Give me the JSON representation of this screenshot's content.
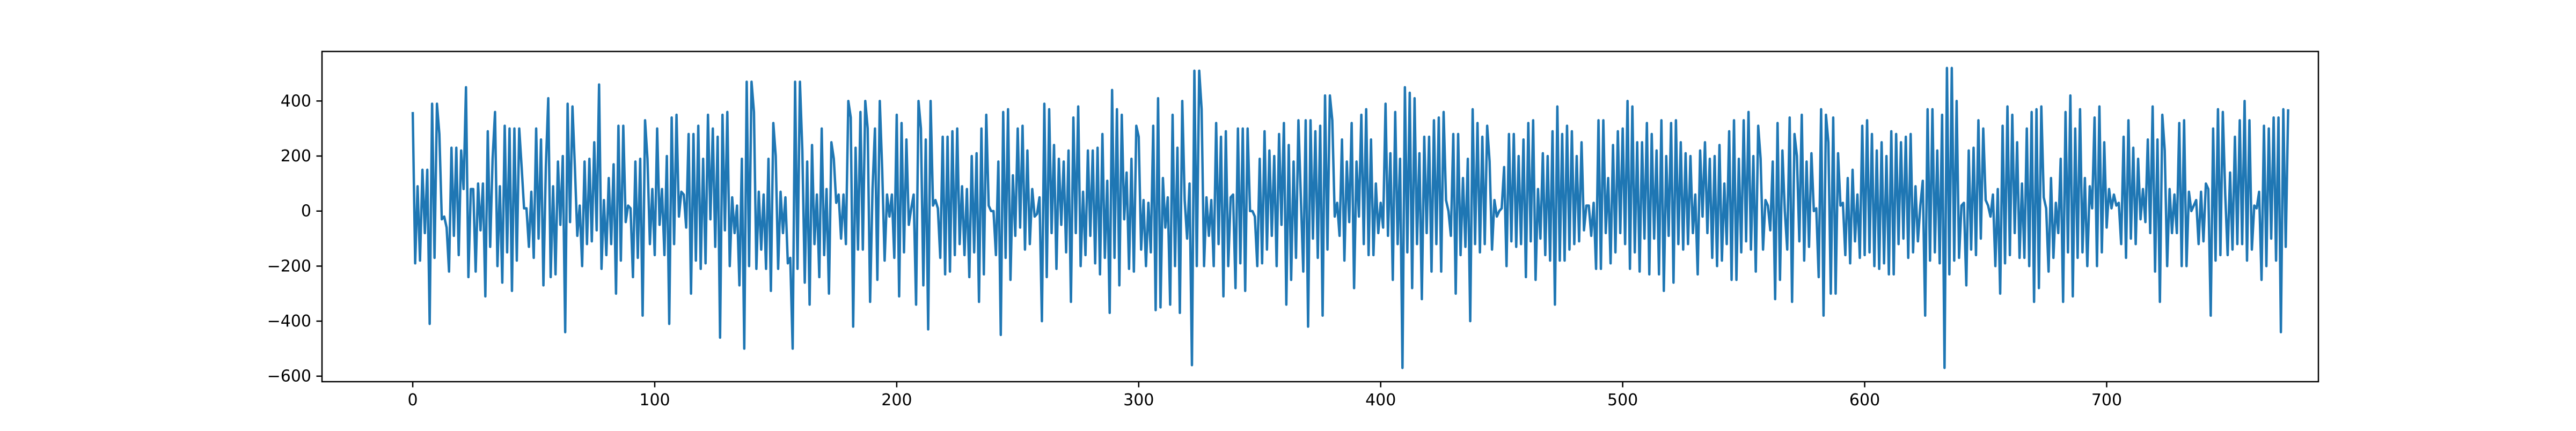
{
  "chart_data": {
    "type": "line",
    "title": "",
    "xlabel": "",
    "ylabel": "",
    "xlim": [
      -37.5,
      787.5
    ],
    "ylim": [
      -620,
      580
    ],
    "x_ticks": [
      0,
      100,
      200,
      300,
      400,
      500,
      600,
      700
    ],
    "y_ticks": [
      -600,
      -400,
      -200,
      0,
      200,
      400
    ],
    "x_tick_labels": [
      "0",
      "100",
      "200",
      "300",
      "400",
      "500",
      "600",
      "700"
    ],
    "y_tick_labels": [
      "−600",
      "−400",
      "−200",
      "0",
      "200",
      "400"
    ],
    "grid": false,
    "legend": "none",
    "line_color": "#1f77b4",
    "series": [
      {
        "x_start": 0,
        "x_step": 1,
        "values": [
          360,
          -190,
          90,
          -180,
          150,
          -80,
          150,
          -410,
          390,
          -170,
          390,
          280,
          -30,
          -20,
          -60,
          -220,
          230,
          -90,
          230,
          -160,
          220,
          80,
          450,
          -240,
          80,
          80,
          -220,
          100,
          -70,
          100,
          -310,
          290,
          -130,
          190,
          360,
          -200,
          90,
          -260,
          310,
          -150,
          300,
          -290,
          300,
          -180,
          300,
          160,
          10,
          10,
          -130,
          70,
          -170,
          300,
          -100,
          260,
          -270,
          160,
          410,
          -240,
          90,
          -230,
          180,
          -50,
          200,
          -440,
          390,
          -40,
          380,
          160,
          -90,
          20,
          -200,
          180,
          -120,
          190,
          -110,
          250,
          -70,
          460,
          -210,
          40,
          -160,
          120,
          -120,
          170,
          -300,
          310,
          -180,
          310,
          -40,
          20,
          10,
          -240,
          180,
          -170,
          190,
          -380,
          330,
          190,
          -120,
          80,
          -160,
          300,
          -50,
          80,
          -160,
          200,
          -410,
          340,
          -120,
          350,
          -20,
          70,
          60,
          -60,
          280,
          -300,
          280,
          -180,
          310,
          -210,
          190,
          -190,
          350,
          -30,
          300,
          -130,
          270,
          -460,
          350,
          -70,
          360,
          -200,
          50,
          -80,
          20,
          -270,
          190,
          -500,
          470,
          -200,
          470,
          360,
          -210,
          70,
          -140,
          60,
          -210,
          190,
          -290,
          320,
          200,
          -210,
          70,
          -80,
          50,
          -190,
          -170,
          -500,
          470,
          -210,
          470,
          220,
          -260,
          180,
          -340,
          240,
          -120,
          60,
          -240,
          300,
          -160,
          80,
          -300,
          250,
          190,
          30,
          60,
          -100,
          60,
          -120,
          400,
          340,
          -420,
          230,
          -140,
          360,
          -140,
          400,
          300,
          -330,
          80,
          300,
          -250,
          400,
          150,
          -180,
          60,
          -20,
          60,
          -170,
          350,
          -310,
          320,
          -150,
          260,
          -50,
          10,
          60,
          -340,
          400,
          300,
          -270,
          260,
          -430,
          400,
          20,
          40,
          10,
          -170,
          270,
          -230,
          270,
          -220,
          290,
          -160,
          300,
          -120,
          90,
          -160,
          80,
          -240,
          200,
          -150,
          210,
          -330,
          300,
          -230,
          350,
          20,
          0,
          0,
          -160,
          180,
          -450,
          360,
          -170,
          370,
          -250,
          130,
          -90,
          300,
          -60,
          310,
          -140,
          220,
          -120,
          80,
          -20,
          -10,
          50,
          -400,
          390,
          -240,
          370,
          -80,
          240,
          -210,
          190,
          -50,
          180,
          -150,
          220,
          -330,
          340,
          -80,
          380,
          -200,
          70,
          -160,
          220,
          -90,
          220,
          -190,
          230,
          -230,
          280,
          -170,
          110,
          -370,
          440,
          -170,
          370,
          -270,
          350,
          -30,
          140,
          -210,
          190,
          -220,
          310,
          270,
          -140,
          40,
          -200,
          30,
          -150,
          310,
          -360,
          410,
          -350,
          120,
          -60,
          50,
          -340,
          350,
          -200,
          230,
          -370,
          400,
          40,
          -100,
          100,
          -560,
          510,
          -200,
          510,
          370,
          -200,
          50,
          -90,
          40,
          -200,
          320,
          -120,
          270,
          -310,
          290,
          -200,
          50,
          60,
          -280,
          300,
          -190,
          300,
          -290,
          300,
          0,
          0,
          -20,
          -200,
          190,
          -190,
          290,
          -140,
          220,
          -90,
          200,
          -200,
          280,
          -50,
          320,
          -340,
          240,
          -250,
          180,
          -170,
          330,
          50,
          -220,
          330,
          -420,
          330,
          -100,
          290,
          -170,
          310,
          -380,
          420,
          -140,
          420,
          330,
          -20,
          30,
          -90,
          260,
          -180,
          180,
          -40,
          320,
          -280,
          180,
          -20,
          350,
          -120,
          370,
          -160,
          260,
          -160,
          100,
          -80,
          30,
          -60,
          390,
          -90,
          210,
          -250,
          360,
          -120,
          190,
          -570,
          450,
          -150,
          430,
          -280,
          410,
          -120,
          210,
          -320,
          270,
          -80,
          270,
          -220,
          330,
          -120,
          340,
          -220,
          360,
          40,
          0,
          -90,
          280,
          -300,
          280,
          -160,
          120,
          -130,
          190,
          -400,
          370,
          -120,
          320,
          -150,
          270,
          -120,
          310,
          180,
          -140,
          40,
          -20,
          0,
          10,
          160,
          -200,
          280,
          -110,
          280,
          -130,
          200,
          -120,
          260,
          -240,
          320,
          -110,
          330,
          -250,
          80,
          -100,
          210,
          -160,
          200,
          -180,
          290,
          -340,
          380,
          -180,
          280,
          -180,
          310,
          -140,
          290,
          -120,
          200,
          -110,
          250,
          -70,
          20,
          20,
          -90,
          30,
          -210,
          330,
          -210,
          330,
          -80,
          120,
          -190,
          240,
          -150,
          290,
          -80,
          300,
          -120,
          400,
          -210,
          380,
          -150,
          250,
          -220,
          250,
          -100,
          320,
          -230,
          280,
          -100,
          220,
          -230,
          330,
          -290,
          200,
          -90,
          320,
          -260,
          330,
          -120,
          250,
          -140,
          210,
          -120,
          200,
          -80,
          60,
          -230,
          220,
          -20,
          250,
          -80,
          190,
          -170,
          200,
          -200,
          240,
          -180,
          100,
          -120,
          290,
          -250,
          330,
          -250,
          190,
          -150,
          330,
          -110,
          360,
          -140,
          200,
          -220,
          310,
          190,
          -140,
          40,
          20,
          -70,
          180,
          -320,
          320,
          -250,
          220,
          0,
          -140,
          340,
          -330,
          280,
          200,
          -110,
          350,
          -180,
          180,
          -130,
          210,
          0,
          10,
          -240,
          370,
          -380,
          350,
          250,
          -300,
          340,
          -300,
          210,
          20,
          30,
          -160,
          120,
          -190,
          150,
          -110,
          60,
          -170,
          310,
          -160,
          330,
          -150,
          280,
          -200,
          220,
          -210,
          250,
          -190,
          200,
          -230,
          290,
          -230,
          280,
          -120,
          250,
          -100,
          270,
          -170,
          280,
          -150,
          90,
          -110,
          20,
          110,
          -380,
          370,
          -180,
          370,
          -150,
          220,
          -190,
          350,
          -570,
          520,
          -230,
          520,
          -180,
          400,
          -170,
          20,
          30,
          -270,
          220,
          -140,
          230,
          -160,
          330,
          -100,
          300,
          40,
          20,
          -20,
          60,
          -200,
          80,
          -300,
          310,
          -190,
          380,
          -160,
          350,
          -80,
          250,
          -170,
          100,
          -170,
          300,
          -200,
          360,
          -330,
          370,
          -280,
          380,
          50,
          10,
          -220,
          120,
          -170,
          30,
          -80,
          190,
          -330,
          360,
          -150,
          420,
          -310,
          300,
          -170,
          370,
          -150,
          120,
          -200,
          90,
          10,
          340,
          -200,
          380,
          -150,
          250,
          -60,
          80,
          10,
          60,
          20,
          30,
          -120,
          270,
          -170,
          330,
          -100,
          230,
          -120,
          190,
          -30,
          80,
          -40,
          260,
          -80,
          380,
          -220,
          260,
          -330,
          350,
          220,
          -200,
          80,
          -80,
          60,
          -80,
          320,
          -200,
          330,
          -200,
          70,
          0,
          20,
          40,
          -120,
          70,
          -110,
          100,
          80,
          -380,
          300,
          -180,
          370,
          -160,
          360,
          60,
          -160,
          140,
          -140,
          270,
          -120,
          330,
          -120,
          400,
          -180,
          330,
          -140,
          20,
          10,
          70,
          -250,
          310,
          -200,
          300,
          -100,
          340,
          -180,
          340,
          -440,
          370,
          -130,
          370
        ]
      }
    ]
  }
}
